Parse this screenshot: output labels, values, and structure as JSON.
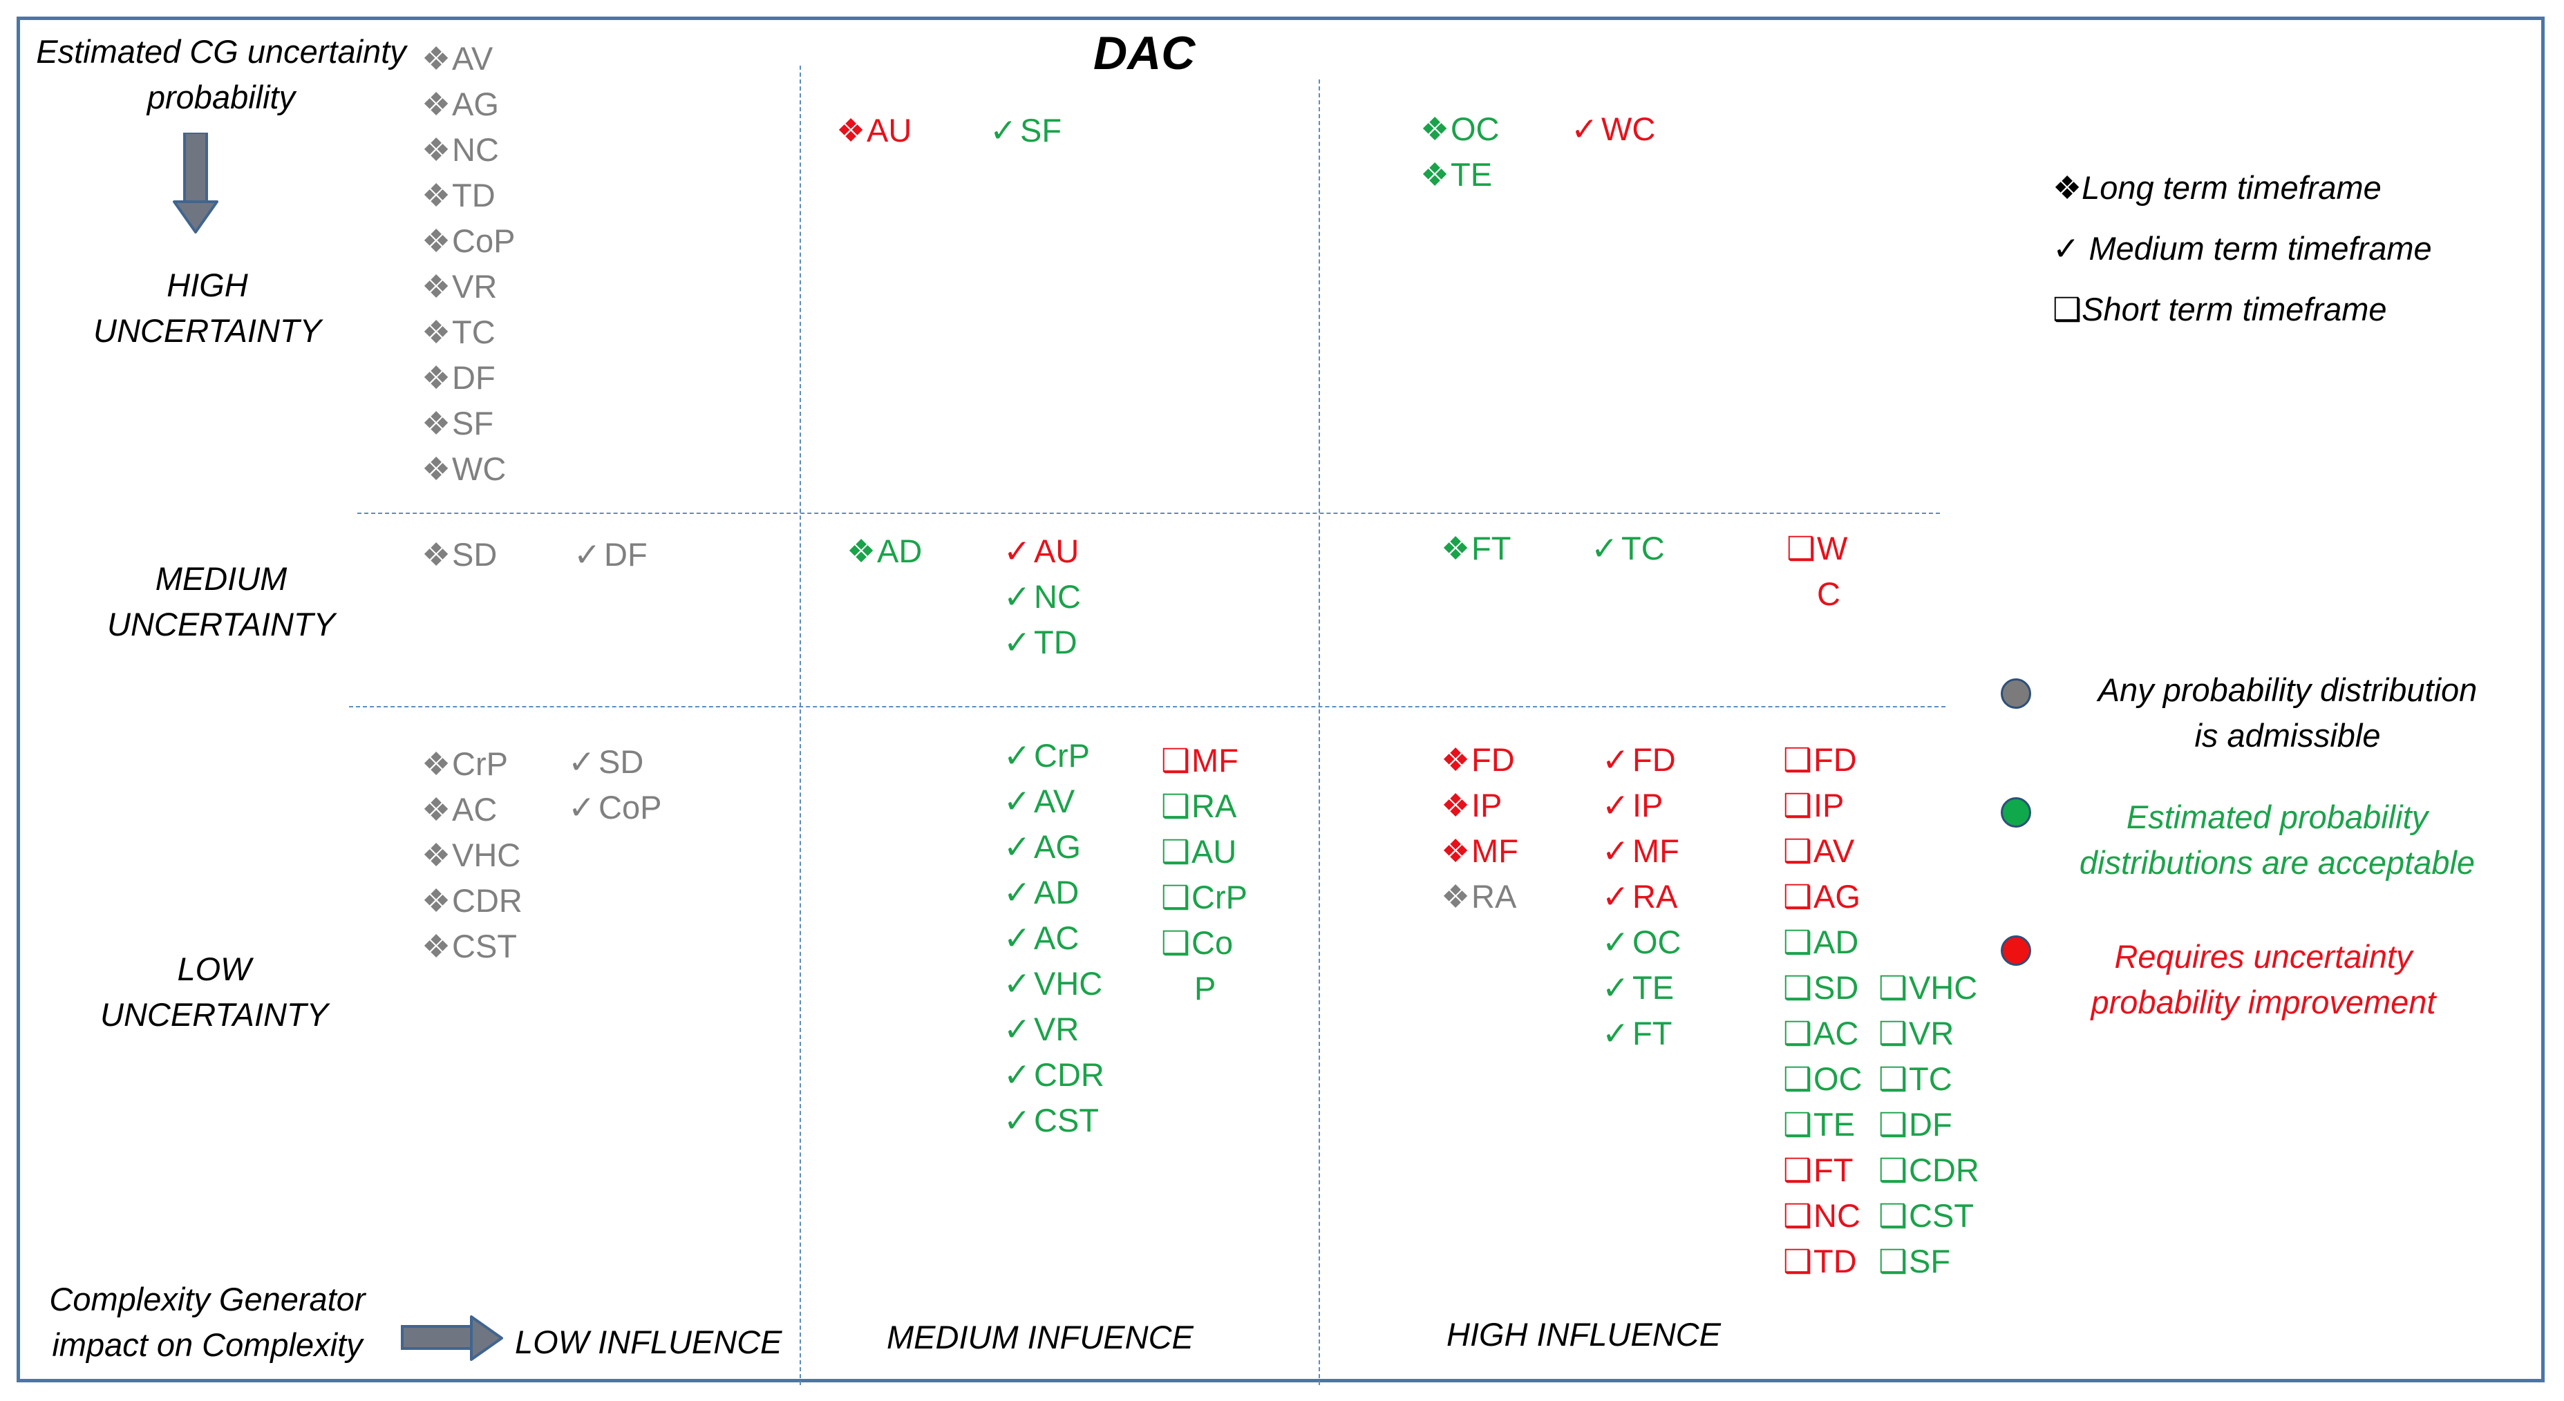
{
  "title": "DAC",
  "colors": {
    "grey": "#808080",
    "green": "#1aa34a",
    "red": "#e8101a",
    "frame": "#4a76a8",
    "gridline": "#5b8cc0",
    "grey_dot": "#7b7b7b",
    "green_dot": "#0fa84a",
    "red_dot": "#ee1111"
  },
  "symbols": {
    "long": "❖",
    "medium": "✓",
    "short": "❑"
  },
  "yaxis": {
    "heading": [
      "Estimated CG uncertainty",
      "probability"
    ],
    "high": [
      "HIGH",
      "UNCERTAINTY"
    ],
    "medium": [
      "MEDIUM",
      "UNCERTAINTY"
    ],
    "low": [
      "LOW",
      "UNCERTAINTY"
    ]
  },
  "xaxis": {
    "heading": [
      "Complexity Generator",
      "impact on Complexity"
    ],
    "low": "LOW INFLUENCE",
    "medium": "MEDIUM INFUENCE",
    "high": "HIGH INFLUENCE"
  },
  "legend": {
    "long": "Long term timeframe",
    "medium": "Medium term timeframe",
    "short": "Short term timeframe",
    "grey_note": [
      "Any  probability  distribution",
      "is admissible"
    ],
    "green_note": [
      "Estimated probability",
      "distributions  are acceptable"
    ],
    "red_note": [
      "Requires uncertainty",
      "probability  improvement"
    ]
  },
  "groups": [
    {
      "id": "hl-long",
      "sym": "long",
      "color": "grey",
      "items": [
        "AV",
        "AG",
        "NC",
        "TD",
        "CoP",
        "VR",
        "TC",
        "DF",
        "SF",
        "WC"
      ]
    },
    {
      "id": "hm-long",
      "sym": "long",
      "color": "red",
      "items": [
        "AU"
      ]
    },
    {
      "id": "hm-med",
      "sym": "medium",
      "color": "green",
      "items": [
        "SF"
      ]
    },
    {
      "id": "hh-long",
      "sym": "long",
      "color": "green",
      "items": [
        "OC",
        "TE"
      ]
    },
    {
      "id": "hh-med",
      "sym": "medium",
      "color": "red",
      "items": [
        "WC"
      ]
    },
    {
      "id": "ml-long",
      "sym": "long",
      "color": "grey",
      "items": [
        "SD"
      ]
    },
    {
      "id": "ml-med",
      "sym": "medium",
      "color": "grey",
      "items": [
        "DF"
      ]
    },
    {
      "id": "mm-long",
      "sym": "long",
      "color": "green",
      "items": [
        "AD"
      ]
    },
    {
      "id": "mm-med-a",
      "sym": "medium",
      "color": "red",
      "items": [
        "AU"
      ]
    },
    {
      "id": "mm-med-b",
      "sym": "medium",
      "color": "green",
      "items": [
        "NC",
        "TD"
      ]
    },
    {
      "id": "mh-long",
      "sym": "long",
      "color": "green",
      "items": [
        "FT"
      ]
    },
    {
      "id": "mh-med",
      "sym": "medium",
      "color": "green",
      "items": [
        "TC"
      ]
    },
    {
      "id": "mh-short",
      "sym": "short",
      "color": "red",
      "items": [
        "W"
      ]
    },
    {
      "id": "mh-short-b",
      "sym": "none",
      "color": "red",
      "items": [
        "C"
      ]
    },
    {
      "id": "ll-long",
      "sym": "long",
      "color": "grey",
      "items": [
        "CrP",
        "AC",
        "VHC",
        "CDR",
        "CST"
      ]
    },
    {
      "id": "ll-med",
      "sym": "medium",
      "color": "grey",
      "items": [
        "SD",
        "CoP"
      ]
    },
    {
      "id": "lm-med",
      "sym": "medium",
      "color": "green",
      "items": [
        "CrP",
        "AV",
        "AG",
        "AD",
        "AC",
        "VHC",
        "VR",
        "CDR",
        "CST"
      ]
    },
    {
      "id": "lm-short-a",
      "sym": "short",
      "color": "red",
      "items": [
        "MF"
      ]
    },
    {
      "id": "lm-short-b",
      "sym": "short",
      "color": "green",
      "items": [
        "RA",
        "AU",
        "CrP",
        "Co"
      ]
    },
    {
      "id": "lm-short-c",
      "sym": "none",
      "color": "green",
      "items": [
        "P"
      ]
    },
    {
      "id": "lh-long-a",
      "sym": "long",
      "color": "red",
      "items": [
        "FD",
        "IP",
        "MF"
      ]
    },
    {
      "id": "lh-long-b",
      "sym": "long",
      "color": "grey",
      "items": [
        "RA"
      ]
    },
    {
      "id": "lh-med-a",
      "sym": "medium",
      "color": "red",
      "items": [
        "FD",
        "IP",
        "MF",
        "RA"
      ]
    },
    {
      "id": "lh-med-b",
      "sym": "medium",
      "color": "green",
      "items": [
        "OC",
        "TE",
        "FT"
      ]
    },
    {
      "id": "lh-short-a",
      "sym": "short",
      "color": "red",
      "items": [
        "FD",
        "IP",
        "AV",
        "AG"
      ]
    },
    {
      "id": "lh-short-b",
      "sym": "short",
      "color": "green",
      "items": [
        "AD",
        "SD",
        "AC",
        "OC",
        "TE"
      ]
    },
    {
      "id": "lh-short-c",
      "sym": "short",
      "color": "red",
      "items": [
        "FT",
        "NC",
        "TD"
      ]
    },
    {
      "id": "lh-short-d",
      "sym": "short",
      "color": "green",
      "items": [
        "VHC",
        "VR",
        "TC",
        "DF",
        "CDR",
        "CST",
        "SF"
      ]
    }
  ]
}
